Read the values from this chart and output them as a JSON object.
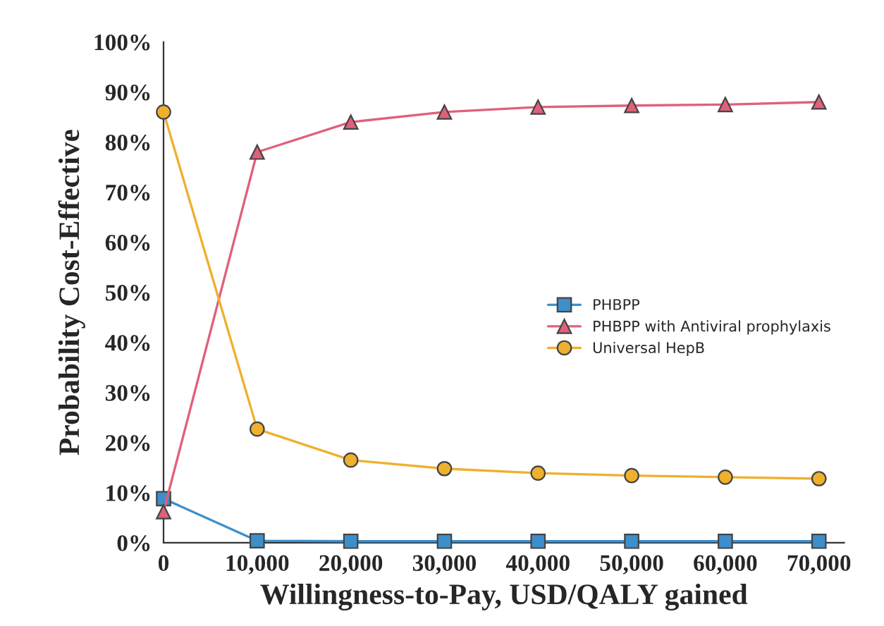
{
  "chart_data": {
    "type": "line",
    "xlabel": "Willingness-to-Pay, USD/QALY gained",
    "ylabel": "Probability Cost-Effective",
    "x": [
      0,
      10000,
      20000,
      30000,
      40000,
      50000,
      60000,
      70000
    ],
    "series": [
      {
        "name": "PHBPP",
        "color": "#3d8fcc",
        "marker": "square",
        "values": [
          8.8,
          0.4,
          0.3,
          0.3,
          0.3,
          0.3,
          0.3,
          0.3
        ]
      },
      {
        "name": "PHBPP with Antiviral prophylaxis",
        "color": "#e0607a",
        "marker": "triangle",
        "values": [
          6.2,
          78,
          84,
          86,
          87,
          87.3,
          87.5,
          88
        ]
      },
      {
        "name": "Universal HepB",
        "color": "#efb02e",
        "marker": "circle",
        "values": [
          86,
          22.7,
          16.5,
          14.8,
          13.9,
          13.4,
          13.1,
          12.8
        ]
      }
    ],
    "xlim": [
      0,
      72700
    ],
    "ylim": [
      0,
      100
    ],
    "xticks": [
      {
        "value": 0,
        "label": "0"
      },
      {
        "value": 10000,
        "label": "10,000"
      },
      {
        "value": 20000,
        "label": "20,000"
      },
      {
        "value": 30000,
        "label": "30,000"
      },
      {
        "value": 40000,
        "label": "40,000"
      },
      {
        "value": 50000,
        "label": "50,000"
      },
      {
        "value": 60000,
        "label": "60,000"
      },
      {
        "value": 70000,
        "label": "70,000"
      }
    ],
    "yticks": [
      {
        "value": 0,
        "label": "0%"
      },
      {
        "value": 10,
        "label": "10%"
      },
      {
        "value": 20,
        "label": "20%"
      },
      {
        "value": 30,
        "label": "30%"
      },
      {
        "value": 40,
        "label": "40%"
      },
      {
        "value": 50,
        "label": "50%"
      },
      {
        "value": 60,
        "label": "60%"
      },
      {
        "value": 70,
        "label": "70%"
      },
      {
        "value": 80,
        "label": "80%"
      },
      {
        "value": 90,
        "label": "90%"
      },
      {
        "value": 100,
        "label": "100%"
      }
    ],
    "grid": false,
    "legend": "center right",
    "line_style": "solid"
  }
}
